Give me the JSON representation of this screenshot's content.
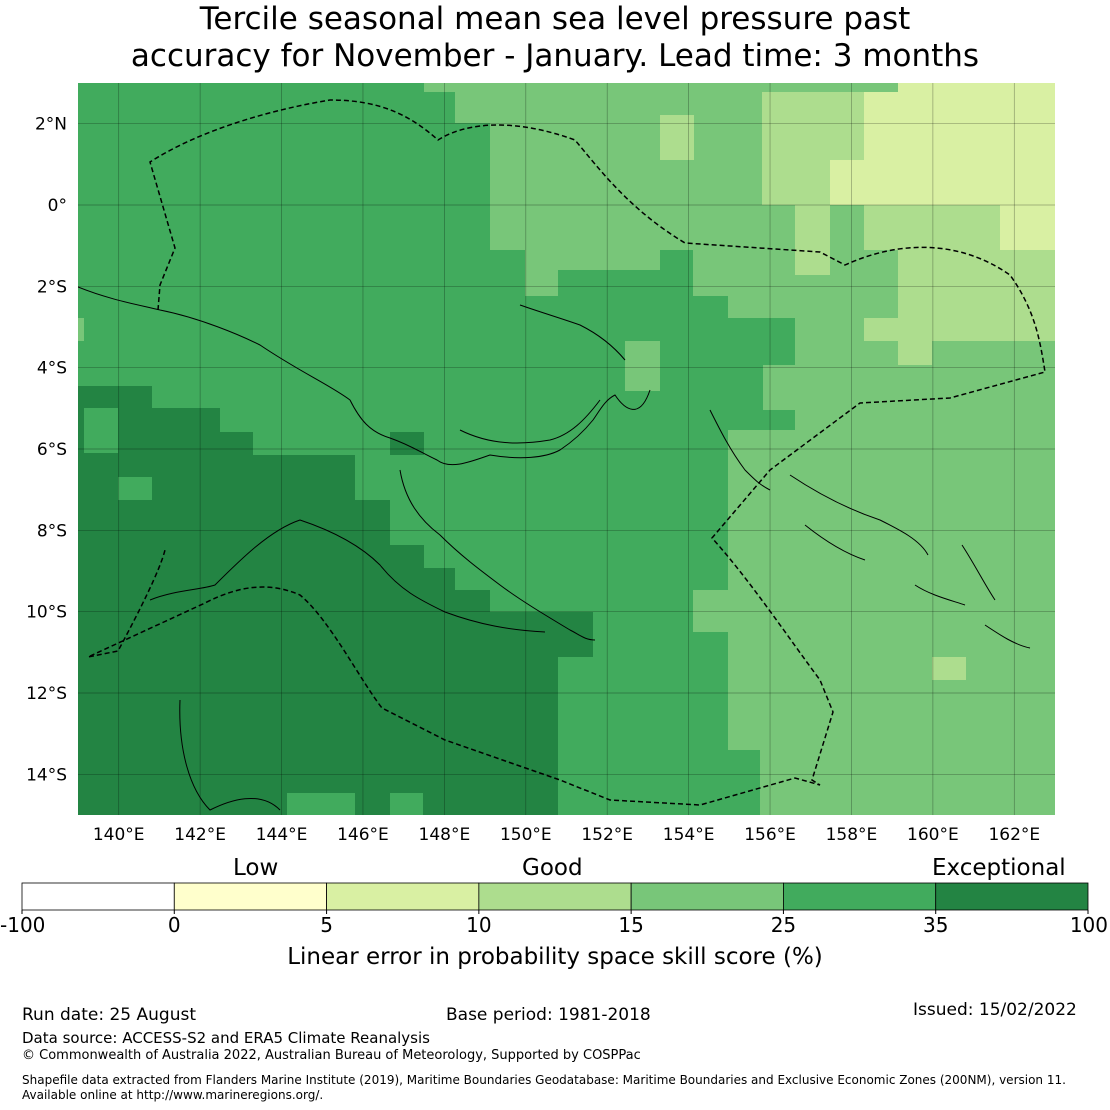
{
  "title": {
    "line1": "Tercile seasonal mean sea level pressure past",
    "line2": "accuracy for November - January. Lead time: 3 months"
  },
  "map": {
    "lon_range": [
      139,
      163
    ],
    "lat_range": [
      -15,
      3
    ],
    "lon_ticks": [
      "140°E",
      "142°E",
      "144°E",
      "146°E",
      "148°E",
      "150°E",
      "152°E",
      "154°E",
      "156°E",
      "158°E",
      "160°E",
      "162°E"
    ],
    "lat_ticks": [
      "2°N",
      "0°",
      "2°S",
      "4°S",
      "6°S",
      "8°S",
      "10°S",
      "12°S",
      "14°S"
    ],
    "grid": true,
    "skill_zones": [
      {
        "level": "25-35",
        "color": "#41ab5d",
        "region": "western Pacific, PNG mainland north, Bismarck Sea"
      },
      {
        "level": "35-100",
        "color": "#238443",
        "region": "southwest: Gulf of Papua, Torres Strait, Coral Sea west"
      },
      {
        "level": "15-25",
        "color": "#78c679",
        "region": "north-central and east: Solomon Sea east, Solomon Islands"
      },
      {
        "level": "10-15",
        "color": "#addd8e",
        "region": "northeast near equator"
      },
      {
        "level": "5-10",
        "color": "#d9f0a3",
        "region": "far northeast corner"
      }
    ],
    "boundary_style": "dashed EEZ outline",
    "coastline": "Papua New Guinea, northern Australia, Solomon Islands"
  },
  "colorbar": {
    "categories": [
      "Low",
      "Good",
      "Exceptional"
    ],
    "ticks": [
      "-100",
      "0",
      "5",
      "10",
      "15",
      "25",
      "35",
      "100"
    ],
    "colors": [
      "#ffffff",
      "#ffffcc",
      "#d9f0a3",
      "#addd8e",
      "#78c679",
      "#41ab5d",
      "#238443"
    ],
    "label": "Linear error in probability space skill score (%)"
  },
  "footer": {
    "run_date": "Run date: 25 August",
    "base_period": "Base period: 1981-2018",
    "issued": "Issued: 15/02/2022",
    "data_source": "Data source: ACCESS-S2 and ERA5 Climate Reanalysis",
    "copyright": "© Commonwealth of Australia 2022, Australian Bureau of Meteorology, Supported by COSPPac",
    "shapefile_line1": "Shapefile data extracted from Flanders Marine Institute (2019), Maritime Boundaries Geodatabase: Maritime Boundaries and Exclusive Economic Zones (200NM), version 11.",
    "shapefile_line2": "Available online at http://www.marineregions.org/."
  }
}
